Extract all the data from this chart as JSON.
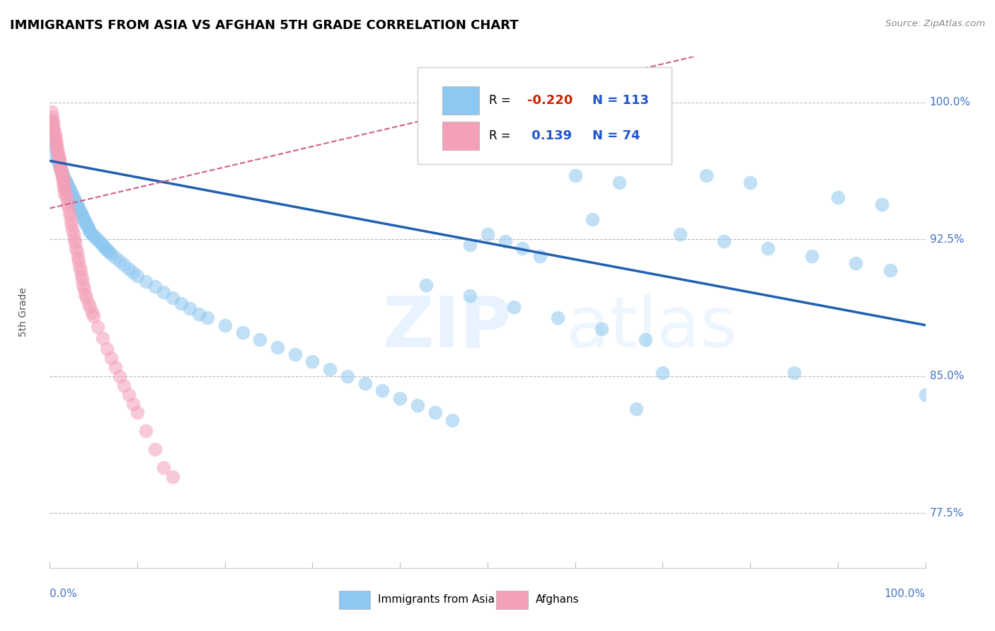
{
  "title": "IMMIGRANTS FROM ASIA VS AFGHAN 5TH GRADE CORRELATION CHART",
  "source": "Source: ZipAtlas.com",
  "ylabel": "5th Grade",
  "ytick_labels": [
    "77.5%",
    "85.0%",
    "92.5%",
    "100.0%"
  ],
  "ytick_values": [
    0.775,
    0.85,
    0.925,
    1.0
  ],
  "legend_label1": "Immigrants from Asia",
  "legend_label2": "Afghans",
  "r1": -0.22,
  "n1": 113,
  "r2": 0.139,
  "n2": 74,
  "color_blue": "#8EC8F0",
  "color_pink": "#F4A0B8",
  "color_blue_line": "#2060B0",
  "color_pink_line": "#D06080",
  "blue_x": [
    0.002,
    0.003,
    0.004,
    0.005,
    0.006,
    0.007,
    0.008,
    0.009,
    0.01,
    0.011,
    0.012,
    0.013,
    0.014,
    0.015,
    0.016,
    0.017,
    0.018,
    0.019,
    0.02,
    0.021,
    0.022,
    0.023,
    0.024,
    0.025,
    0.026,
    0.027,
    0.028,
    0.029,
    0.03,
    0.031,
    0.032,
    0.033,
    0.034,
    0.035,
    0.036,
    0.037,
    0.038,
    0.039,
    0.04,
    0.041,
    0.042,
    0.043,
    0.044,
    0.045,
    0.046,
    0.048,
    0.05,
    0.052,
    0.054,
    0.056,
    0.058,
    0.06,
    0.062,
    0.064,
    0.066,
    0.068,
    0.07,
    0.075,
    0.08,
    0.085,
    0.09,
    0.095,
    0.1,
    0.11,
    0.12,
    0.13,
    0.14,
    0.15,
    0.16,
    0.17,
    0.18,
    0.2,
    0.22,
    0.24,
    0.26,
    0.28,
    0.3,
    0.32,
    0.34,
    0.36,
    0.38,
    0.4,
    0.42,
    0.44,
    0.46,
    0.48,
    0.5,
    0.52,
    0.54,
    0.56,
    0.6,
    0.65,
    0.7,
    0.75,
    0.8,
    0.85,
    0.9,
    0.95,
    1.0,
    0.62,
    0.67,
    0.72,
    0.77,
    0.82,
    0.87,
    0.92,
    0.96,
    0.43,
    0.48,
    0.53,
    0.58,
    0.63,
    0.68
  ],
  "blue_y": [
    0.99,
    0.985,
    0.982,
    0.978,
    0.975,
    0.972,
    0.97,
    0.968,
    0.967,
    0.965,
    0.964,
    0.963,
    0.962,
    0.96,
    0.959,
    0.958,
    0.957,
    0.956,
    0.955,
    0.954,
    0.953,
    0.952,
    0.951,
    0.95,
    0.949,
    0.948,
    0.947,
    0.946,
    0.945,
    0.944,
    0.943,
    0.942,
    0.941,
    0.94,
    0.939,
    0.938,
    0.937,
    0.936,
    0.935,
    0.934,
    0.933,
    0.932,
    0.931,
    0.93,
    0.929,
    0.928,
    0.927,
    0.926,
    0.925,
    0.924,
    0.923,
    0.922,
    0.921,
    0.92,
    0.919,
    0.918,
    0.917,
    0.915,
    0.913,
    0.911,
    0.909,
    0.907,
    0.905,
    0.902,
    0.899,
    0.896,
    0.893,
    0.89,
    0.887,
    0.884,
    0.882,
    0.878,
    0.874,
    0.87,
    0.866,
    0.862,
    0.858,
    0.854,
    0.85,
    0.846,
    0.842,
    0.838,
    0.834,
    0.83,
    0.826,
    0.922,
    0.928,
    0.924,
    0.92,
    0.916,
    0.96,
    0.956,
    0.852,
    0.96,
    0.956,
    0.852,
    0.948,
    0.944,
    0.84,
    0.936,
    0.832,
    0.928,
    0.924,
    0.92,
    0.916,
    0.912,
    0.908,
    0.9,
    0.894,
    0.888,
    0.882,
    0.876,
    0.87,
    0.864
  ],
  "pink_x": [
    0.002,
    0.003,
    0.004,
    0.005,
    0.006,
    0.007,
    0.008,
    0.009,
    0.01,
    0.011,
    0.012,
    0.013,
    0.014,
    0.015,
    0.016,
    0.017,
    0.018,
    0.019,
    0.02,
    0.021,
    0.022,
    0.023,
    0.024,
    0.025,
    0.026,
    0.027,
    0.028,
    0.029,
    0.03,
    0.031,
    0.032,
    0.033,
    0.034,
    0.035,
    0.036,
    0.037,
    0.038,
    0.039,
    0.04,
    0.042,
    0.044,
    0.046,
    0.048,
    0.05,
    0.055,
    0.06,
    0.065,
    0.07,
    0.075,
    0.08,
    0.085,
    0.09,
    0.095,
    0.1,
    0.11,
    0.12,
    0.13,
    0.14,
    0.002,
    0.003,
    0.004,
    0.005,
    0.006,
    0.007,
    0.008,
    0.009,
    0.01,
    0.011,
    0.012,
    0.013,
    0.014,
    0.015,
    0.016,
    0.017
  ],
  "pink_y": [
    0.99,
    0.988,
    0.985,
    0.983,
    0.98,
    0.978,
    0.975,
    0.973,
    0.97,
    0.968,
    0.965,
    0.963,
    0.96,
    0.958,
    0.955,
    0.953,
    0.95,
    0.948,
    0.945,
    0.943,
    0.94,
    0.938,
    0.935,
    0.933,
    0.93,
    0.928,
    0.925,
    0.923,
    0.92,
    0.918,
    0.915,
    0.913,
    0.91,
    0.908,
    0.905,
    0.903,
    0.9,
    0.898,
    0.895,
    0.893,
    0.89,
    0.888,
    0.885,
    0.883,
    0.877,
    0.871,
    0.865,
    0.86,
    0.855,
    0.85,
    0.845,
    0.84,
    0.835,
    0.83,
    0.82,
    0.81,
    0.8,
    0.795,
    0.995,
    0.992,
    0.989,
    0.986,
    0.983,
    0.98,
    0.977,
    0.974,
    0.971,
    0.968,
    0.965,
    0.962,
    0.959,
    0.956,
    0.953,
    0.95
  ]
}
